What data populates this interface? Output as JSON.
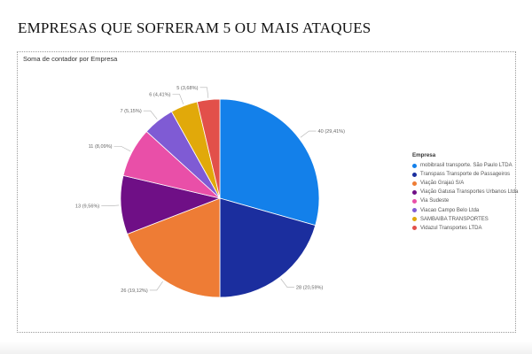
{
  "page": {
    "title": "EMPRESAS QUE SOFRERAM 5 OU MAIS ATAQUES"
  },
  "visual": {
    "title": "Soma de contador por Empresa"
  },
  "chart_data": {
    "type": "pie",
    "title": "Soma de contador por Empresa",
    "legend_title": "Empresa",
    "legend_position": "right",
    "slices": [
      {
        "name": "mobibrasil transporte. São Paulo LTDA",
        "value": 40,
        "label": "40 (29,41%)",
        "color": "#1380ea"
      },
      {
        "name": "Transpass Transporte de Passageiros",
        "value": 28,
        "label": "28 (20,59%)",
        "color": "#1b2e9e"
      },
      {
        "name": "Viação Grajaú S/A",
        "value": 26,
        "label": "26 (19,12%)",
        "color": "#ee7c35"
      },
      {
        "name": "Viação Gatusa Transportes Urbanos Ltda",
        "value": 13,
        "label": "13 (9,56%)",
        "color": "#6f0f86"
      },
      {
        "name": "Via Sudeste",
        "value": 11,
        "label": "11 (8,09%)",
        "color": "#e94fa8"
      },
      {
        "name": "Viacao Campo Belo Ltda",
        "value": 7,
        "label": "7 (5,15%)",
        "color": "#7f5bd4"
      },
      {
        "name": "SAMBAIBA TRANSPORTES",
        "value": 6,
        "label": "6 (4,41%)",
        "color": "#e1a90a"
      },
      {
        "name": "Vidazul Transportes LTDA",
        "value": 5,
        "label": "5 (3,68%)",
        "color": "#e2504a"
      }
    ]
  }
}
